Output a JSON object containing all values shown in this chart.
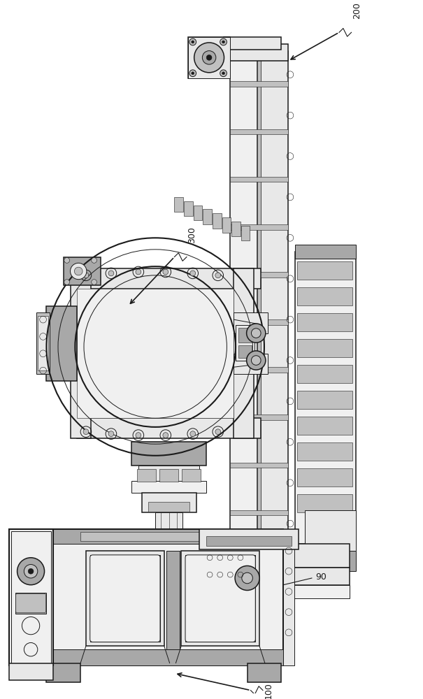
{
  "bg_color": "#ffffff",
  "lc": "#1a1a1a",
  "lc_light": "#555555",
  "gray1": "#d8d8d8",
  "gray2": "#c0c0c0",
  "gray3": "#a8a8a8",
  "gray4": "#e8e8e8",
  "gray5": "#f0f0f0",
  "figsize": [
    6.05,
    10.0
  ],
  "dpi": 100
}
